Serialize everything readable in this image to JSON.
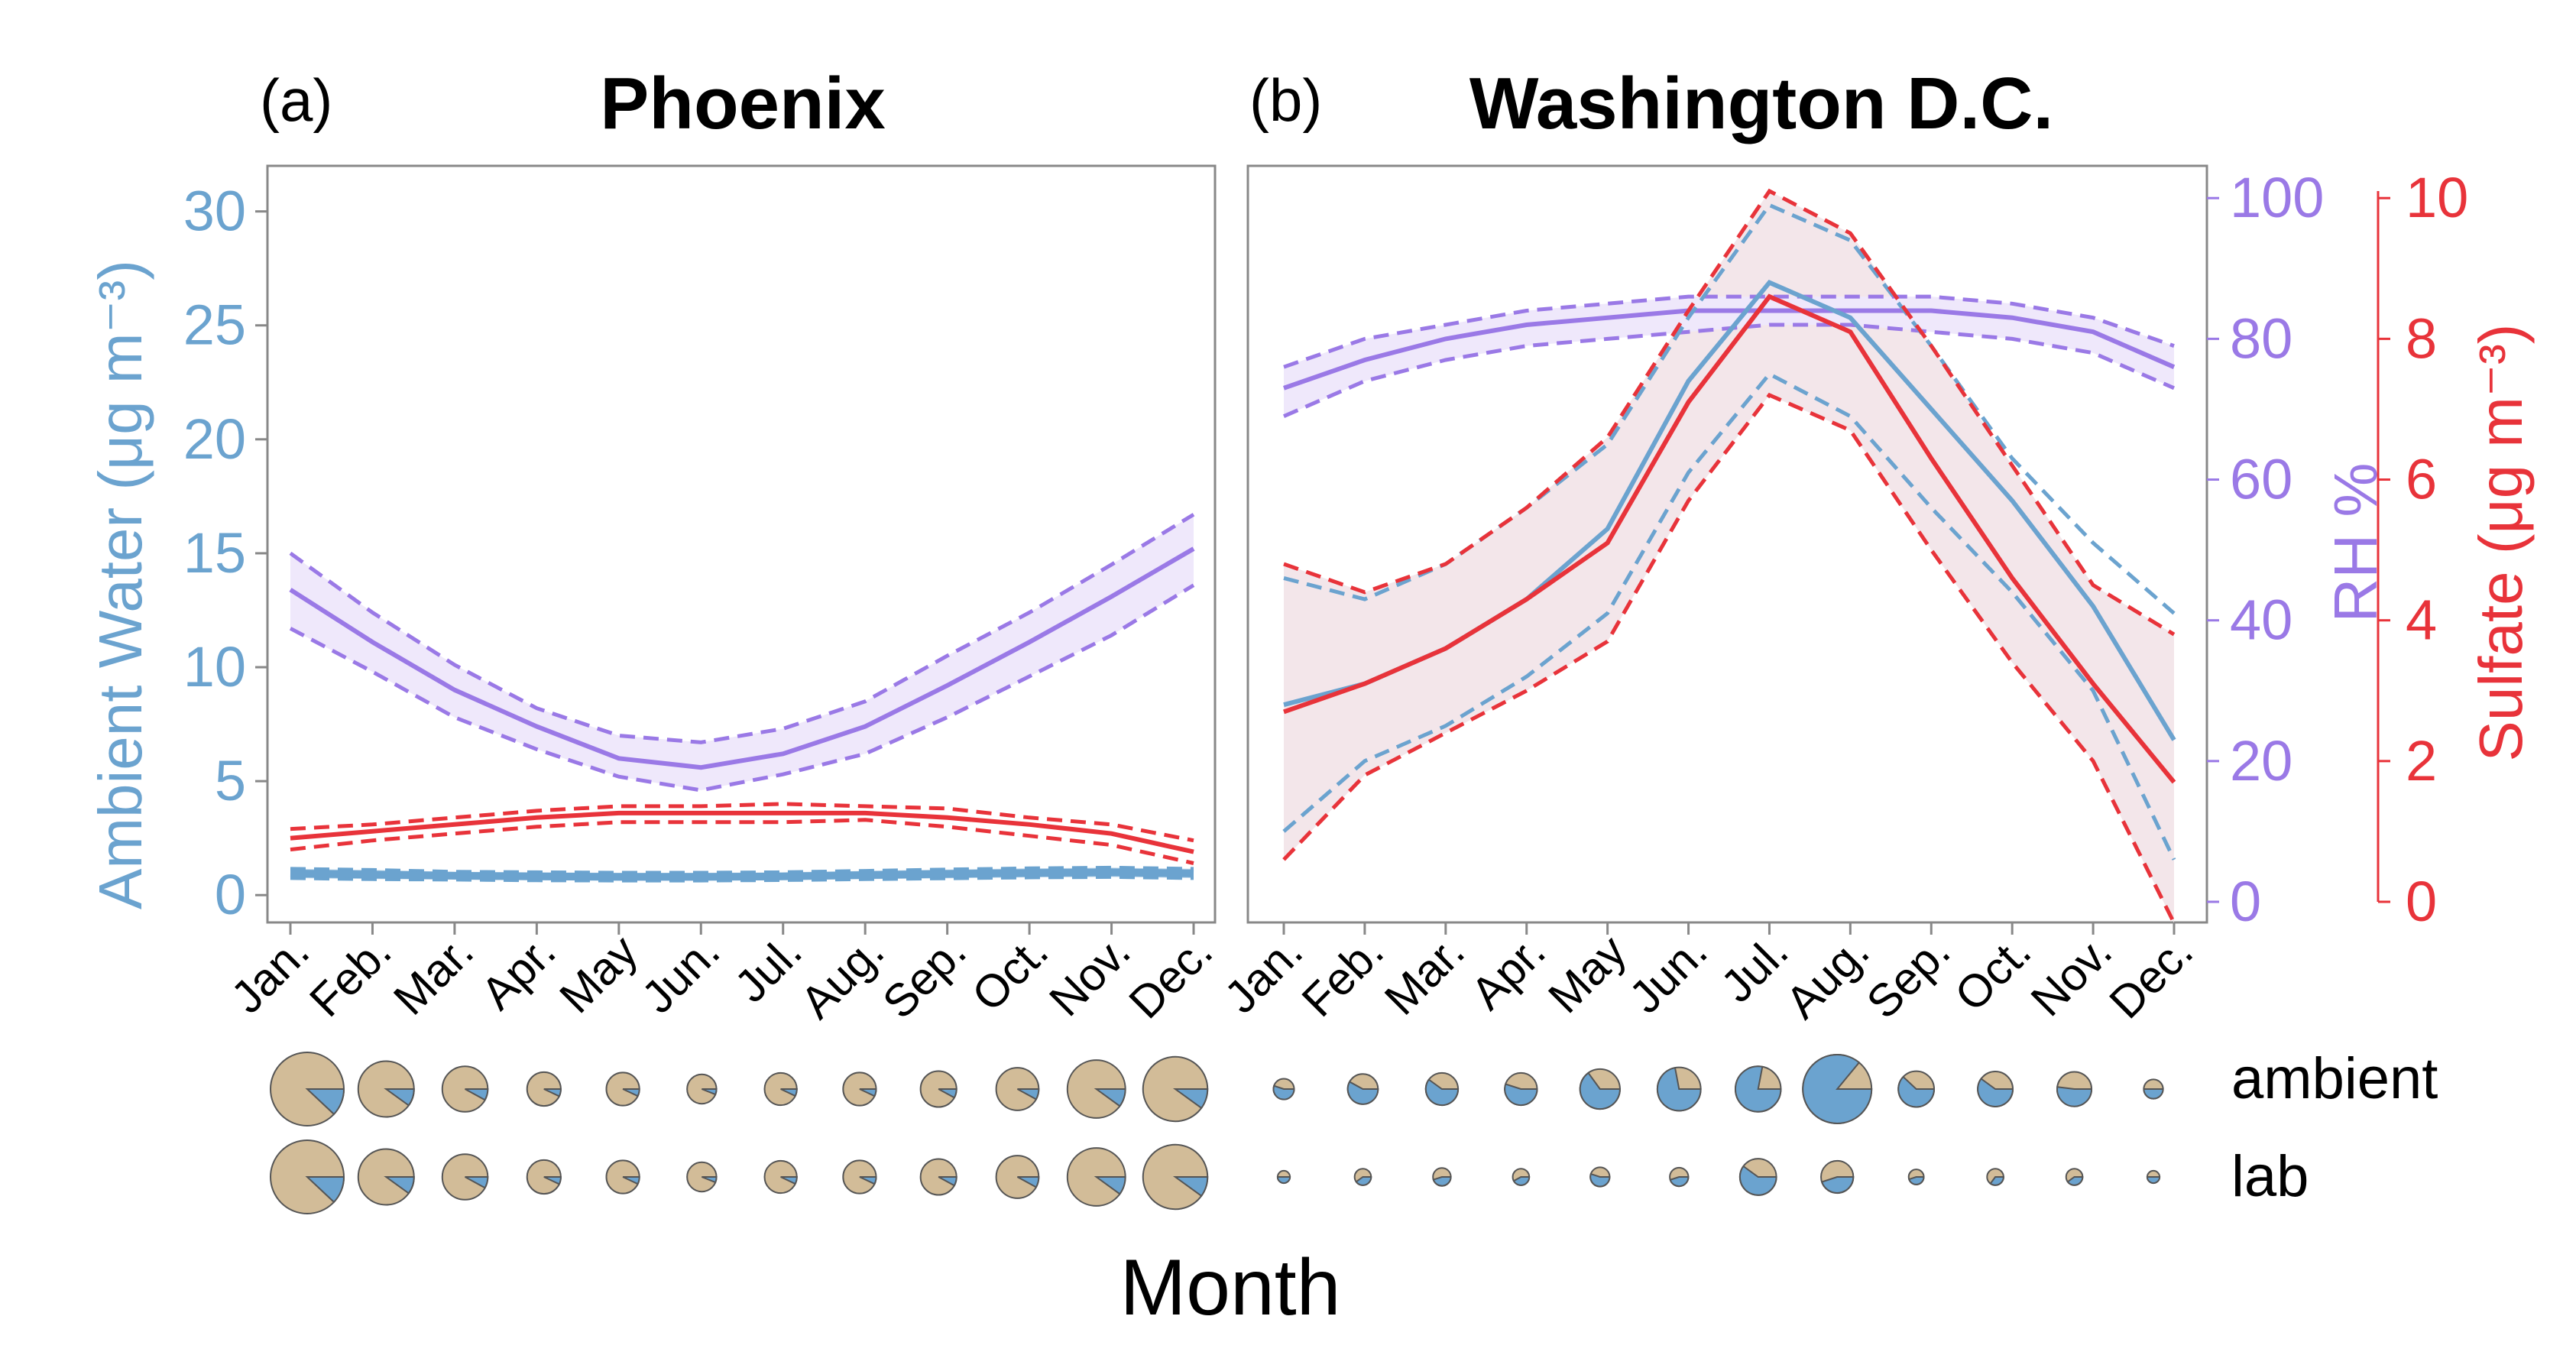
{
  "panels": {
    "a": {
      "label": "(a)",
      "title": "Phoenix"
    },
    "b": {
      "label": "(b)",
      "title": "Washington D.C."
    }
  },
  "axes": {
    "left_label": "Ambient Water (μg m⁻³)",
    "rh_label": "RH %",
    "sulfate_label": "Sulfate (μg m⁻³)",
    "xlabel": "Month"
  },
  "pie_rows": {
    "ambient": "ambient",
    "lab": "lab"
  },
  "colors": {
    "water": "#6ba3cf",
    "rh": "#9a79e6",
    "sulfate": "#e8333a",
    "rh_band": "#efe8fb",
    "dc_band": "#f3e6ea",
    "pie_dry": "#d2bc98",
    "pie_water": "#6ba3cf"
  },
  "chart_data": [
    {
      "type": "line",
      "panel": "a",
      "title": "Phoenix",
      "xlabel": "Month",
      "ylabel": "Ambient Water (μg m⁻³)",
      "categories": [
        "Jan.",
        "Feb.",
        "Mar.",
        "Apr.",
        "May",
        "Jun.",
        "Jul.",
        "Aug.",
        "Sep.",
        "Oct.",
        "Nov.",
        "Dec."
      ],
      "ylim": [
        -1.2,
        32
      ],
      "yticks": [
        0,
        5,
        10,
        15,
        20,
        25,
        30
      ],
      "series": [
        {
          "key": "rh",
          "values": [
            13.4,
            11.1,
            9.0,
            7.4,
            6.0,
            5.6,
            6.2,
            7.4,
            9.2,
            11.1,
            13.1,
            15.2
          ],
          "lower": [
            11.7,
            9.8,
            7.8,
            6.4,
            5.2,
            4.6,
            5.3,
            6.2,
            7.8,
            9.6,
            11.4,
            13.6
          ],
          "upper": [
            15.0,
            12.4,
            10.1,
            8.2,
            7.0,
            6.7,
            7.3,
            8.5,
            10.5,
            12.4,
            14.5,
            16.7
          ]
        },
        {
          "key": "sulfate",
          "values": [
            2.5,
            2.8,
            3.1,
            3.4,
            3.6,
            3.6,
            3.6,
            3.6,
            3.4,
            3.1,
            2.7,
            1.9
          ],
          "lower": [
            2.0,
            2.4,
            2.7,
            3.0,
            3.2,
            3.2,
            3.2,
            3.3,
            3.0,
            2.6,
            2.2,
            1.4
          ],
          "upper": [
            2.9,
            3.1,
            3.4,
            3.7,
            3.9,
            3.9,
            4.0,
            3.9,
            3.8,
            3.4,
            3.1,
            2.4
          ]
        },
        {
          "key": "water",
          "values": [
            0.95,
            0.9,
            0.85,
            0.82,
            0.8,
            0.8,
            0.82,
            0.88,
            0.93,
            0.97,
            1.0,
            0.95
          ],
          "lower": [
            0.75,
            0.7,
            0.68,
            0.65,
            0.64,
            0.64,
            0.66,
            0.7,
            0.74,
            0.78,
            0.8,
            0.75
          ],
          "upper": [
            1.15,
            1.1,
            1.02,
            1.0,
            0.98,
            0.98,
            1.0,
            1.06,
            1.12,
            1.17,
            1.2,
            1.15
          ]
        }
      ],
      "pies": {
        "ambient_size": [
          1.0,
          0.76,
          0.62,
          0.46,
          0.45,
          0.4,
          0.44,
          0.45,
          0.49,
          0.58,
          0.79,
          0.88
        ],
        "ambient_water_frac": [
          0.12,
          0.1,
          0.08,
          0.07,
          0.07,
          0.06,
          0.07,
          0.07,
          0.08,
          0.08,
          0.1,
          0.1
        ],
        "lab_size": [
          1.0,
          0.76,
          0.62,
          0.46,
          0.45,
          0.4,
          0.44,
          0.45,
          0.49,
          0.58,
          0.79,
          0.88
        ],
        "lab_water_frac": [
          0.12,
          0.1,
          0.08,
          0.07,
          0.07,
          0.06,
          0.07,
          0.07,
          0.08,
          0.08,
          0.1,
          0.1
        ]
      }
    },
    {
      "type": "line",
      "panel": "b",
      "title": "Washington D.C.",
      "xlabel": "Month",
      "ylabel": "RH %",
      "y2label": "Sulfate (μg m⁻³)",
      "categories": [
        "Jan.",
        "Feb.",
        "Mar.",
        "Apr.",
        "May",
        "Jun.",
        "Jul.",
        "Aug.",
        "Sep.",
        "Oct.",
        "Nov.",
        "Dec."
      ],
      "rh_ylim": [
        0,
        101
      ],
      "rh_ticks": [
        0,
        20,
        40,
        60,
        80,
        100
      ],
      "sulfate_ylim": [
        0,
        10.1
      ],
      "sulfate_ticks": [
        0,
        2,
        4,
        6,
        8,
        10
      ],
      "series": [
        {
          "key": "rh",
          "axis": "rh",
          "values": [
            73,
            77,
            80,
            82,
            83,
            84,
            84,
            84,
            84,
            83,
            81,
            76
          ],
          "lower": [
            69,
            74,
            77,
            79,
            80,
            81,
            82,
            82,
            81,
            80,
            78,
            73
          ],
          "upper": [
            76,
            80,
            82,
            84,
            85,
            86,
            86,
            86,
            86,
            85,
            83,
            79
          ]
        },
        {
          "key": "sulfate",
          "axis": "sulfate",
          "values": [
            2.7,
            3.1,
            3.6,
            4.3,
            5.1,
            7.1,
            8.6,
            8.1,
            6.3,
            4.6,
            3.1,
            1.7
          ],
          "lower": [
            0.6,
            1.8,
            2.4,
            3.0,
            3.7,
            5.7,
            7.2,
            6.7,
            5.0,
            3.4,
            2.0,
            -0.3
          ],
          "upper": [
            4.8,
            4.4,
            4.8,
            5.6,
            6.6,
            8.4,
            10.1,
            9.5,
            7.9,
            6.2,
            4.5,
            3.8
          ]
        },
        {
          "key": "water",
          "axis": "rh",
          "values": [
            28,
            31,
            36,
            43,
            53,
            74,
            88,
            83,
            70,
            57,
            42,
            23
          ],
          "lower": [
            10,
            20,
            25,
            32,
            41,
            61,
            75,
            69,
            56,
            44,
            30,
            6
          ],
          "upper": [
            46,
            43,
            48,
            56,
            65,
            83,
            99,
            94,
            79,
            63,
            51,
            41
          ]
        }
      ],
      "pies": {
        "ambient_size": [
          0.3,
          0.44,
          0.47,
          0.47,
          0.58,
          0.63,
          0.66,
          1.0,
          0.52,
          0.51,
          0.5,
          0.28
        ],
        "ambient_water_frac": [
          0.55,
          0.58,
          0.6,
          0.55,
          0.65,
          0.72,
          0.78,
          0.86,
          0.62,
          0.6,
          0.52,
          0.5
        ],
        "lab_size": [
          0.18,
          0.24,
          0.26,
          0.24,
          0.28,
          0.27,
          0.53,
          0.47,
          0.22,
          0.24,
          0.24,
          0.18
        ],
        "lab_water_frac": [
          0.5,
          0.4,
          0.45,
          0.42,
          0.55,
          0.45,
          0.6,
          0.45,
          0.45,
          0.35,
          0.4,
          0.5
        ]
      }
    }
  ]
}
